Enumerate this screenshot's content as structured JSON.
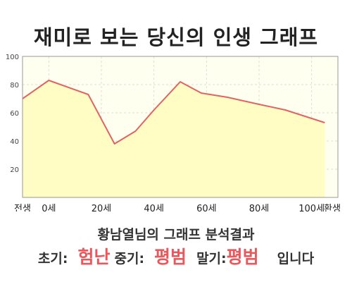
{
  "title": "재미로 보는 당신의 인생 그래프",
  "result_heading": "황남열님의 그래프 분석결과",
  "verdict": {
    "early_label": "초기:",
    "early_value": "험난",
    "middle_label": "중기:",
    "middle_value": "평범",
    "late_label": "말기:",
    "late_value": "평범",
    "suffix": "입니다"
  },
  "colors": {
    "line": "#e06464",
    "fill": "#fffcc4",
    "plot_bg": "#fffff0",
    "grid": "#dddddd",
    "highlight": "#e8585c"
  },
  "chart_data": {
    "type": "area",
    "x_tick_labels": [
      "전생",
      "0세",
      "20세",
      "40세",
      "60세",
      "80세",
      "100세",
      "환생"
    ],
    "x": [
      -10,
      0,
      15,
      25,
      33,
      40,
      50,
      58,
      68,
      80,
      90,
      100,
      105
    ],
    "y": [
      70,
      83,
      73,
      38,
      47,
      62,
      82,
      74,
      71,
      66,
      62,
      56,
      53
    ],
    "x_min": -10,
    "x_max": 110,
    "ylim": [
      0,
      100
    ],
    "y_ticks": [
      20,
      40,
      60,
      80,
      100
    ],
    "grid": true,
    "legend": "none"
  }
}
